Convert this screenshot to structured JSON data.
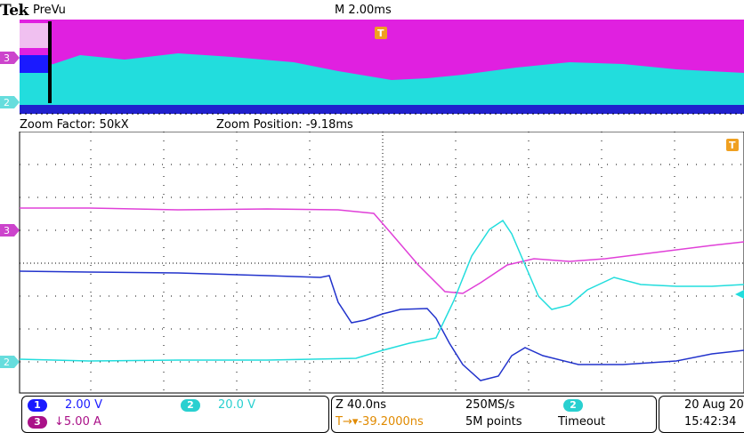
{
  "header": {
    "brand": "Tek",
    "mode": "PreVu",
    "horizontal_scale": "M 2.00ms",
    "trigger_marker": "T"
  },
  "zoom_info": {
    "factor": "Zoom Factor: 50kX",
    "position": "Zoom Position: -9.18ms"
  },
  "channel_markers": {
    "ch3": "3",
    "ch2": "2"
  },
  "channel_panel": {
    "ch1": {
      "number": "1",
      "scale": "2.00 V",
      "color": "#1a1aff"
    },
    "ch2": {
      "number": "2",
      "scale": "20.0 V",
      "color": "#29e0e0"
    },
    "ch3": {
      "number": "3",
      "scale": "↓5.00 A",
      "color": "#cc0099"
    }
  },
  "acquisition_panel": {
    "zoom": "Z 40.0ns",
    "sample_rate": "250MS/s",
    "trigger_position": "T→▾-39.2000ns",
    "record_length": "5M points",
    "trigger_source": "2",
    "trigger_mode": "Timeout"
  },
  "datetime_panel": {
    "date": "20 Aug 20",
    "time": "15:42:34"
  },
  "colors": {
    "ch1": "#2233cc",
    "ch2": "#22dddd",
    "ch3": "#e040d8",
    "trigger": "#f0a020",
    "grid": "#000000"
  }
}
